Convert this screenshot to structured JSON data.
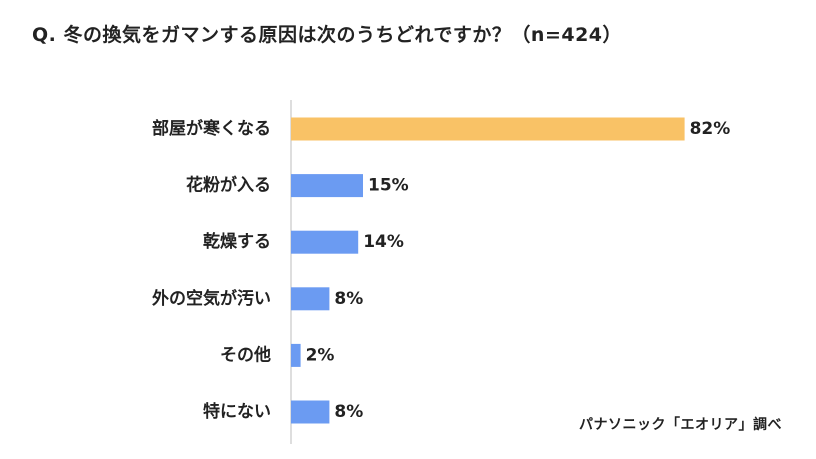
{
  "title": "Q. 冬の換気をガマンする原因は次のうちどれですか？（n=424）",
  "source": "パナソニック「エオリア」調べ",
  "colors": {
    "highlight": "#F9C266",
    "default": "#6B9BF2",
    "axis": "#D4D4D4",
    "text": "#222222"
  },
  "chart_data": {
    "type": "bar",
    "orientation": "horizontal",
    "categories": [
      "部屋が寒くなる",
      "花粉が入る",
      "乾燥する",
      "外の空気が汚い",
      "その他",
      "特にない"
    ],
    "values": [
      82,
      15,
      14,
      8,
      2,
      8
    ],
    "value_labels": [
      "82%",
      "15%",
      "14%",
      "8%",
      "2%",
      "8%"
    ],
    "highlight_index": 0,
    "xlim": [
      0,
      100
    ],
    "grid": false,
    "legend": "none"
  }
}
